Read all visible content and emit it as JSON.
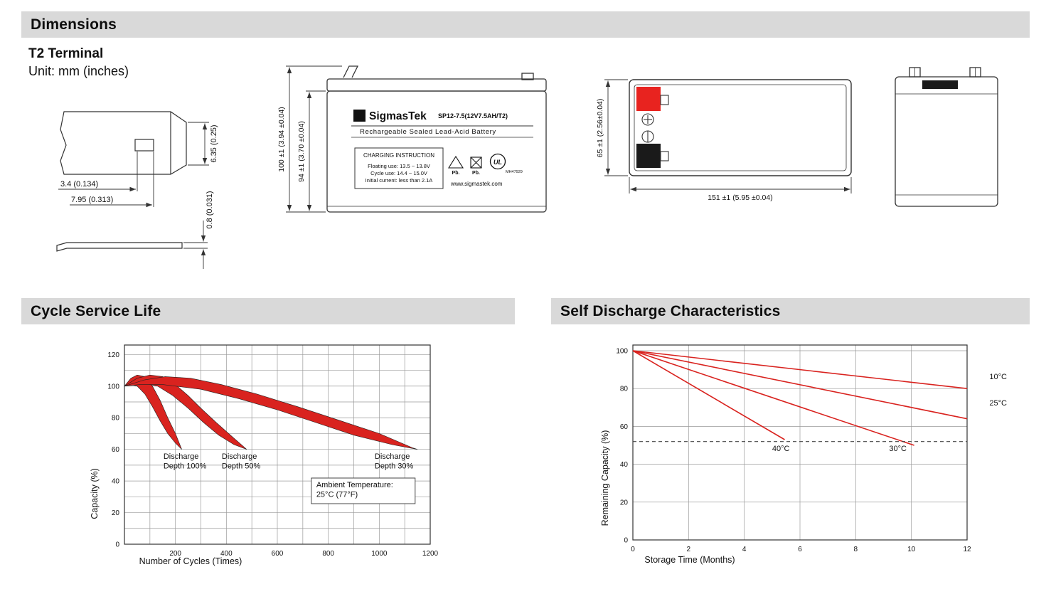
{
  "headers": {
    "dimensions": "Dimensions",
    "cycle_service_life": "Cycle Service Life",
    "self_discharge": "Self Discharge Characteristics"
  },
  "colors": {
    "section_bar_gray": "#d9d9d9",
    "accent_red": "#d9231f",
    "drawing_line": "#333333"
  },
  "dimensions_section": {
    "terminal_title": "T2 Terminal",
    "unit_label": "Unit: mm (inches)",
    "terminal_drawing": {
      "dim_tab_height": "6.35 (0.25)",
      "dim_tab_width": "3.4 (0.134)",
      "dim_tab_offset": "7.95 (0.313)",
      "dim_blade_thickness": "0.8 (0.031)"
    },
    "front_view": {
      "logo_glyph": "Σ",
      "brand": "SigmasTek",
      "model": "SP12-7.5(12V7.5AH/T2)",
      "battery_type": "Rechargeable Sealed Lead-Acid Battery",
      "charging_box_title": "CHARGING INSTRUCTION",
      "charging_lines": [
        "Floating use: 13.5 ~ 13.8V",
        "Cycle use: 14.4 ~ 15.0V",
        "Initial current: less than 2.1A"
      ],
      "pb_label": "Pb.",
      "ul_mark": "UL",
      "ul_code": "MH47929",
      "website": "www.sigmastek.com",
      "dim_height_outer": "100 ±1 (3.94 ±0.04)",
      "dim_height_inner": "94 ±1 (3.70 ±0.04)"
    },
    "top_view": {
      "dim_depth": "65 ±1 (2.56±0.04)",
      "dim_width": "151 ±1 (5.95 ±0.04)",
      "terminal_red": "#e8231f",
      "terminal_black": "#1a1a1a"
    }
  },
  "chart_data": [
    {
      "id": "cycle-service-life",
      "type": "area",
      "title": "Cycle Service Life",
      "xlabel": "Number of Cycles (Times)",
      "ylabel": "Capacity (%)",
      "xlim": [
        0,
        1200
      ],
      "ylim": [
        0,
        126
      ],
      "xticks": [
        200,
        400,
        600,
        800,
        1000,
        1200
      ],
      "yticks": [
        0,
        20,
        40,
        60,
        80,
        100,
        120
      ],
      "xgrid_step": 100,
      "ygrid_step": 10,
      "grid": true,
      "legend": "none",
      "series": [
        {
          "name": "Discharge Depth 100%",
          "type": "band",
          "color": "#d9231f",
          "upper": [
            [
              0,
              100
            ],
            [
              25,
              105
            ],
            [
              50,
              107
            ],
            [
              80,
              106
            ],
            [
              110,
              100
            ],
            [
              140,
              91
            ],
            [
              170,
              80
            ],
            [
              200,
              70
            ],
            [
              225,
              60
            ]
          ],
          "lower": [
            [
              225,
              60
            ],
            [
              200,
              64
            ],
            [
              170,
              70
            ],
            [
              140,
              78
            ],
            [
              110,
              87
            ],
            [
              80,
              95
            ],
            [
              50,
              100
            ],
            [
              25,
              101
            ],
            [
              0,
              100
            ]
          ]
        },
        {
          "name": "Discharge Depth 50%",
          "type": "band",
          "color": "#d9231f",
          "upper": [
            [
              0,
              100
            ],
            [
              50,
              105
            ],
            [
              100,
              107
            ],
            [
              150,
              106
            ],
            [
              200,
              101
            ],
            [
              250,
              94
            ],
            [
              300,
              86
            ],
            [
              360,
              77
            ],
            [
              430,
              67
            ],
            [
              480,
              60
            ]
          ],
          "lower": [
            [
              480,
              60
            ],
            [
              430,
              63
            ],
            [
              370,
              69
            ],
            [
              310,
              77
            ],
            [
              250,
              86
            ],
            [
              190,
              94
            ],
            [
              130,
              100
            ],
            [
              70,
              102
            ],
            [
              30,
              101
            ],
            [
              0,
              100
            ]
          ]
        },
        {
          "name": "Discharge Depth 30%",
          "type": "band",
          "color": "#d9231f",
          "upper": [
            [
              0,
              100
            ],
            [
              80,
              104
            ],
            [
              160,
              106
            ],
            [
              260,
              105
            ],
            [
              380,
              101
            ],
            [
              520,
              95
            ],
            [
              680,
              87
            ],
            [
              850,
              78
            ],
            [
              1000,
              70
            ],
            [
              1130,
              61
            ],
            [
              1150,
              60
            ]
          ],
          "lower": [
            [
              1150,
              60
            ],
            [
              1050,
              63
            ],
            [
              900,
              69
            ],
            [
              750,
              77
            ],
            [
              600,
              85
            ],
            [
              450,
              92
            ],
            [
              300,
              98
            ],
            [
              150,
              101
            ],
            [
              60,
              101
            ],
            [
              0,
              100
            ]
          ]
        }
      ],
      "annotations": [
        {
          "lines": [
            "Discharge",
            "Depth 100%"
          ],
          "x": 153,
          "y": 54
        },
        {
          "lines": [
            "Discharge",
            "Depth 50%"
          ],
          "x": 382,
          "y": 54
        },
        {
          "lines": [
            "Discharge",
            "Depth 30%"
          ],
          "x": 982,
          "y": 54
        },
        {
          "lines": [
            "Ambient Temperature:",
            "25°C (77°F)"
          ],
          "x": 753,
          "y": 36,
          "box": true
        }
      ]
    },
    {
      "id": "self-discharge-characteristics",
      "type": "line",
      "title": "Self Discharge Characteristics",
      "xlabel": "Storage Time (Months)",
      "ylabel": "Remaining Capacity (%)",
      "xlim": [
        0,
        12
      ],
      "ylim": [
        0,
        103
      ],
      "xticks": [
        0,
        2,
        4,
        6,
        8,
        10,
        12
      ],
      "yticks": [
        0,
        20,
        40,
        60,
        80,
        100
      ],
      "xgrid_step": 2,
      "ygrid_step": 20,
      "grid": true,
      "legend": "inline-labels",
      "series": [
        {
          "name": "10°C",
          "type": "line",
          "color": "#d9231f",
          "points": [
            [
              0,
              100
            ],
            [
              12,
              80
            ]
          ]
        },
        {
          "name": "25°C",
          "type": "line",
          "color": "#d9231f",
          "points": [
            [
              0,
              100
            ],
            [
              12,
              64
            ]
          ]
        },
        {
          "name": "30°C",
          "type": "line",
          "color": "#d9231f",
          "points": [
            [
              0,
              100
            ],
            [
              10.1,
              50
            ]
          ]
        },
        {
          "name": "40°C",
          "type": "line",
          "color": "#d9231f",
          "points": [
            [
              0,
              100
            ],
            [
              5.45,
              53
            ]
          ]
        },
        {
          "name": "50% remaining reference",
          "type": "dashed",
          "color": "#444444",
          "points": [
            [
              0,
              52
            ],
            [
              12,
              52
            ]
          ]
        }
      ],
      "annotations": [
        {
          "lines": [
            "10°C"
          ],
          "x": 12.8,
          "y": 85
        },
        {
          "lines": [
            "25°C"
          ],
          "x": 12.8,
          "y": 71
        },
        {
          "lines": [
            "40°C"
          ],
          "x": 5.0,
          "y": 47
        },
        {
          "lines": [
            "30°C"
          ],
          "x": 9.2,
          "y": 47
        }
      ]
    }
  ]
}
